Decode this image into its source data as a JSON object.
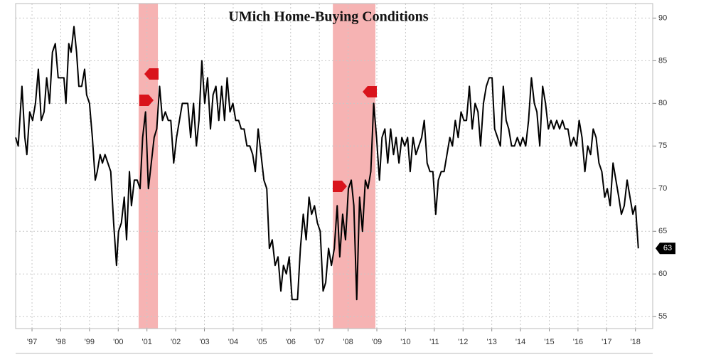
{
  "chart_data": {
    "type": "line",
    "title": "UMich Home-Buying Conditions",
    "x": [
      1996.93,
      1997.02,
      1997.15,
      1997.25,
      1997.32,
      1997.42,
      1997.52,
      1997.62,
      1997.72,
      1997.82,
      1997.92,
      1998.01,
      1998.11,
      1998.21,
      1998.31,
      1998.41,
      1998.51,
      1998.61,
      1998.68,
      1998.78,
      1998.86,
      1998.96,
      1999.05,
      1999.13,
      1999.23,
      1999.33,
      1999.4,
      1999.5,
      1999.6,
      1999.7,
      1999.77,
      1999.87,
      1999.95,
      2000.04,
      2000.14,
      2000.24,
      2000.34,
      2000.44,
      2000.51,
      2000.61,
      2000.71,
      2000.79,
      2000.89,
      2000.96,
      2001.06,
      2001.16,
      2001.26,
      2001.35,
      2001.45,
      2001.55,
      2001.65,
      2001.75,
      2001.84,
      2001.94,
      2002.04,
      2002.14,
      2002.24,
      2002.33,
      2002.43,
      2002.53,
      2002.63,
      2002.73,
      2002.82,
      2002.92,
      2003.02,
      2003.12,
      2003.22,
      2003.31,
      2003.41,
      2003.51,
      2003.61,
      2003.71,
      2003.8,
      2003.9,
      2004,
      2004.1,
      2004.2,
      2004.29,
      2004.39,
      2004.49,
      2004.59,
      2004.69,
      2004.78,
      2004.88,
      2004.98,
      2005.08,
      2005.18,
      2005.27,
      2005.37,
      2005.47,
      2005.57,
      2005.67,
      2005.76,
      2005.86,
      2005.96,
      2006.06,
      2006.16,
      2006.25,
      2006.35,
      2006.45,
      2006.55,
      2006.65,
      2006.74,
      2006.84,
      2006.94,
      2007.04,
      2007.14,
      2007.23,
      2007.33,
      2007.43,
      2007.53,
      2007.63,
      2007.72,
      2007.82,
      2007.92,
      2008.02,
      2008.12,
      2008.21,
      2008.31,
      2008.41,
      2008.51,
      2008.61,
      2008.7,
      2008.8,
      2008.9,
      2009,
      2009.1,
      2009.19,
      2009.29,
      2009.39,
      2009.49,
      2009.59,
      2009.68,
      2009.78,
      2009.88,
      2009.98,
      2010.08,
      2010.17,
      2010.27,
      2010.37,
      2010.47,
      2010.57,
      2010.66,
      2010.76,
      2010.86,
      2010.96,
      2011.06,
      2011.15,
      2011.25,
      2011.35,
      2011.45,
      2011.55,
      2011.64,
      2011.74,
      2011.84,
      2011.94,
      2012.04,
      2012.13,
      2012.23,
      2012.33,
      2012.43,
      2012.53,
      2012.62,
      2012.72,
      2012.82,
      2012.92,
      2013.02,
      2013.11,
      2013.21,
      2013.31,
      2013.41,
      2013.51,
      2013.6,
      2013.7,
      2013.8,
      2013.9,
      2014,
      2014.09,
      2014.19,
      2014.29,
      2014.39,
      2014.49,
      2014.58,
      2014.68,
      2014.78,
      2014.88,
      2014.98,
      2015.07,
      2015.17,
      2015.27,
      2015.37,
      2015.47,
      2015.56,
      2015.66,
      2015.76,
      2015.86,
      2015.96,
      2016.05,
      2016.15,
      2016.25,
      2016.35,
      2016.45,
      2016.54,
      2016.64,
      2016.74,
      2016.84,
      2016.94,
      2017.03,
      2017.13,
      2017.23,
      2017.33,
      2017.43,
      2017.52,
      2017.62,
      2017.72,
      2017.82,
      2017.92,
      2018.01,
      2018.11,
      2018.21,
      2018.31,
      2018.41,
      2018.5,
      2018.6
    ],
    "series": [
      {
        "color": "#000000",
        "values": [
          76,
          75,
          82,
          76,
          74,
          79,
          78,
          80,
          84,
          78,
          79,
          83,
          80,
          86,
          87,
          83,
          83,
          83,
          80,
          87,
          86,
          89,
          86,
          82,
          82,
          84,
          81,
          80,
          76,
          71,
          72,
          74,
          73,
          74,
          73,
          72,
          66,
          61,
          65,
          66,
          69,
          64,
          72,
          68,
          71,
          71,
          70,
          76,
          79,
          70,
          73,
          76,
          77,
          82,
          78,
          79,
          78,
          78,
          73,
          76,
          78,
          80,
          80,
          80,
          76,
          80,
          75,
          78,
          85,
          80,
          83,
          77,
          81,
          82,
          78,
          82,
          78,
          83,
          79,
          80,
          78,
          78,
          77,
          77,
          75,
          75,
          74,
          72,
          77,
          74,
          71,
          70,
          63,
          64,
          61,
          62,
          58,
          61,
          60,
          62,
          57,
          57,
          57,
          63,
          67,
          64,
          69,
          67,
          68,
          66,
          65,
          58,
          59,
          63,
          61,
          63,
          68,
          62,
          67,
          64,
          70,
          71,
          68,
          57,
          69,
          65,
          71,
          70,
          72,
          80,
          76,
          71,
          76,
          77,
          73,
          77,
          74,
          76,
          73,
          76,
          75,
          76,
          72,
          76,
          74,
          75,
          76,
          78,
          73,
          72,
          72,
          67,
          71,
          72,
          72,
          74,
          76,
          75,
          78,
          76,
          79,
          78,
          78,
          82,
          77,
          80,
          79,
          75,
          80,
          82,
          83,
          83,
          77,
          76,
          75,
          82,
          78,
          77,
          75,
          75,
          76,
          75,
          76,
          75,
          78,
          83,
          80,
          79,
          75,
          82,
          80,
          77,
          78,
          77,
          78,
          77,
          78,
          77,
          77,
          75,
          76,
          75,
          78,
          76,
          72,
          75,
          74,
          77,
          76,
          73,
          72,
          69,
          70,
          68,
          73,
          71,
          69,
          67,
          68,
          71,
          69,
          67,
          68,
          63
        ]
      }
    ],
    "shaded_regions": [
      [
        2001.21,
        2001.88
      ],
      [
        2007.97,
        2009.45
      ]
    ],
    "shade_color": "#f4a6a6",
    "xlim": [
      1996.93,
      2019.1
    ],
    "xticks": [
      {
        "value": 1997.5,
        "label": "'97"
      },
      {
        "value": 1998.5,
        "label": "'98"
      },
      {
        "value": 1999.5,
        "label": "'99"
      },
      {
        "value": 2000.5,
        "label": "'00"
      },
      {
        "value": 2001.5,
        "label": "'01"
      },
      {
        "value": 2002.5,
        "label": "'02"
      },
      {
        "value": 2003.5,
        "label": "'03"
      },
      {
        "value": 2004.5,
        "label": "'04"
      },
      {
        "value": 2005.5,
        "label": "'05"
      },
      {
        "value": 2006.5,
        "label": "'06"
      },
      {
        "value": 2007.5,
        "label": "'07"
      },
      {
        "value": 2008.5,
        "label": "'08"
      },
      {
        "value": 2009.5,
        "label": "'09"
      },
      {
        "value": 2010.5,
        "label": "'10"
      },
      {
        "value": 2011.5,
        "label": "'11"
      },
      {
        "value": 2012.5,
        "label": "'12"
      },
      {
        "value": 2013.5,
        "label": "'13"
      },
      {
        "value": 2014.5,
        "label": "'14"
      },
      {
        "value": 2015.5,
        "label": "'15"
      },
      {
        "value": 2016.5,
        "label": "'16"
      },
      {
        "value": 2017.5,
        "label": "'17"
      },
      {
        "value": 2018.5,
        "label": "'18"
      }
    ],
    "ylim": [
      53.6,
      91.7
    ],
    "yticks": [
      55,
      60,
      65,
      70,
      75,
      80,
      85,
      90
    ],
    "grid": true
  }
}
